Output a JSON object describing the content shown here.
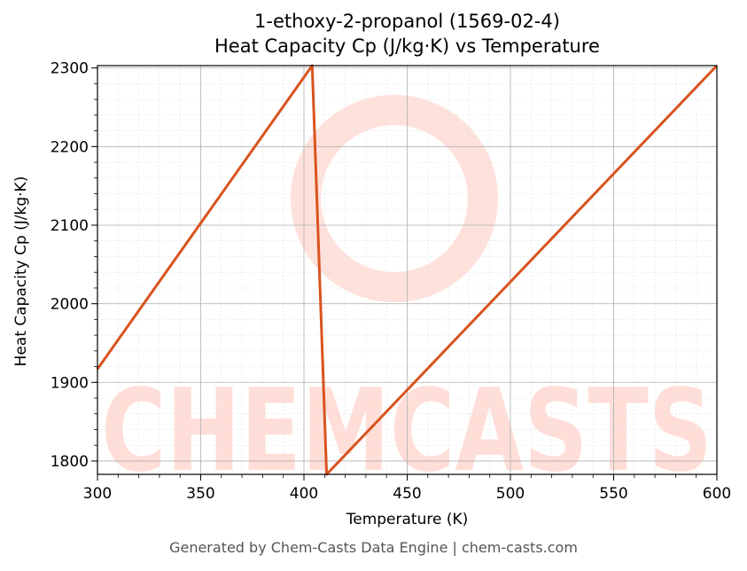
{
  "chart_data": {
    "type": "line",
    "title": "1-ethoxy-2-propanol (1569-02-4)",
    "subtitle": "Heat Capacity Cp (J/kg·K) vs Temperature",
    "xlabel": "Temperature (K)",
    "ylabel": "Heat Capacity Cp (J/kg·K)",
    "xlim": [
      300,
      600
    ],
    "ylim": [
      1783,
      2303
    ],
    "xticks": [
      300,
      350,
      400,
      450,
      500,
      550,
      600
    ],
    "yticks": [
      1800,
      1900,
      2000,
      2100,
      2200,
      2300
    ],
    "grid": true,
    "series": [
      {
        "color": "#d9531e",
        "x": [
          300,
          404,
          411,
          600
        ],
        "y": [
          1917,
          2303,
          1783,
          2303
        ]
      }
    ]
  },
  "watermark": {
    "text": "CHEMCASTS",
    "color": "#ffd4cc"
  },
  "footer": "Generated by Chem-Casts Data Engine | chem-casts.com"
}
